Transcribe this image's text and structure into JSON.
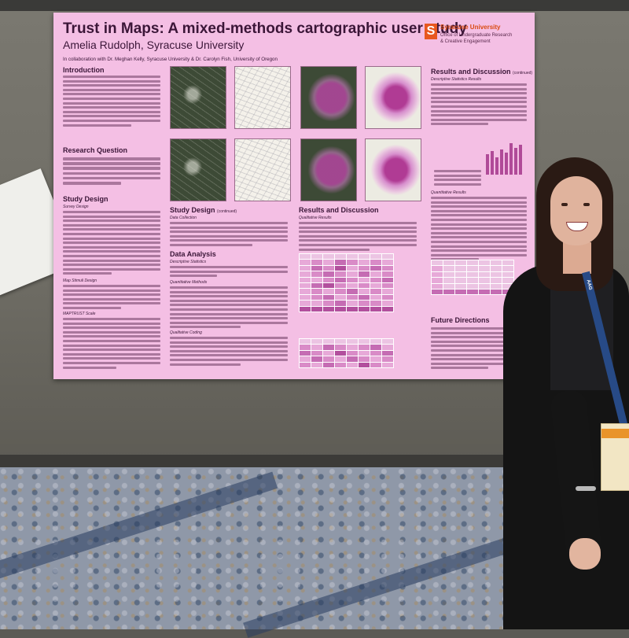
{
  "poster": {
    "title": "Trust in Maps: A mixed-methods cartographic user study",
    "author": "Amelia Rudolph, Syracuse University",
    "collaboration": "In collaboration with Dr. Meghan Kelly, Syracuse University & Dr. Carolyn Fish, University of Oregon",
    "logo": {
      "mark": "S",
      "line1": "Syracuse University",
      "line2": "Office of Undergraduate Research",
      "line3": "& Creative Engagement"
    },
    "sections": {
      "introduction": "Introduction",
      "research_question": "Research Question",
      "study_design": "Study Design",
      "study_design_continued": "Study Design",
      "study_design_continued_tag": "(continued)",
      "data_analysis": "Data Analysis",
      "results_discussion": "Results and Discussion",
      "results_discussion_right": "Results and Discussion",
      "results_discussion_right_tag": "(continued)",
      "future_directions": "Future Directions"
    },
    "subheadings": {
      "survey_design": "Survey Design",
      "data_collection": "Data Collection",
      "descriptive_statistics": "Descriptive Statistics",
      "quantitative_methods": "Quantitative Methods",
      "qualitative_coding": "Qualitative Coding",
      "qualitative_results": "Qualitative Results",
      "descriptive_statistics_results": "Descriptive Statistics Results",
      "quantitative_results": "Quantitative Results",
      "map_stimuli_design": "Map Stimuli Design",
      "maptrust_scale": "MAPTRUST Scale"
    },
    "colors": {
      "poster_bg": "#f4bfe4",
      "heading": "#3b1638",
      "accent": "#b04a98",
      "syracuse_orange": "#e8571f"
    }
  },
  "badge": {
    "lanyard_text": "AAG"
  }
}
